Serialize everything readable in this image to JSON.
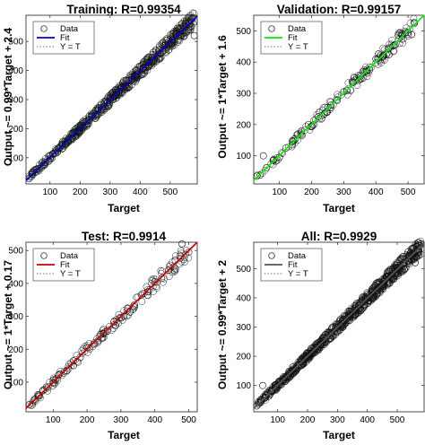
{
  "chart_data": [
    {
      "type": "scatter",
      "title": "Training: R=0.99354",
      "xlabel": "Target",
      "ylabel": "Output ~= 0.99*Target + 2.4",
      "xlim": [
        20,
        590
      ],
      "ylim": [
        10,
        590
      ],
      "xticks": [
        100,
        200,
        300,
        400,
        500
      ],
      "yticks": [
        100,
        200,
        300,
        400,
        500
      ],
      "fit_color": "#0000cc",
      "fit": {
        "slope": 0.99,
        "intercept": 2.4
      },
      "legend": [
        "Data",
        "Fit",
        "Y = T"
      ],
      "legend_position": "top-left",
      "grid": false,
      "series": [
        {
          "x": [
            30,
            40,
            55,
            60,
            80,
            100,
            110,
            125,
            140,
            150,
            160,
            170,
            180,
            190,
            200,
            210,
            220,
            230,
            240,
            250,
            260,
            270,
            280,
            290,
            300,
            310,
            320,
            330,
            340,
            350,
            360,
            370,
            380,
            390,
            400,
            410,
            420,
            430,
            440,
            460,
            480,
            500,
            520,
            540,
            560,
            580
          ],
          "y": [
            28,
            42,
            52,
            63,
            78,
            98,
            115,
            122,
            143,
            148,
            165,
            168,
            185,
            187,
            205,
            208,
            225,
            228,
            245,
            248,
            265,
            268,
            285,
            288,
            305,
            308,
            325,
            328,
            345,
            348,
            365,
            368,
            385,
            388,
            405,
            408,
            425,
            428,
            445,
            455,
            485,
            495,
            525,
            535,
            565,
            520
          ]
        }
      ]
    },
    {
      "type": "scatter",
      "title": "Validation: R=0.99157",
      "xlabel": "Target",
      "ylabel": "Output ~= 1*Target + 1.6",
      "xlim": [
        20,
        550
      ],
      "ylim": [
        10,
        550
      ],
      "xticks": [
        100,
        200,
        300,
        400,
        500
      ],
      "yticks": [
        100,
        200,
        300,
        400,
        500
      ],
      "fit_color": "#00ee00",
      "fit": {
        "slope": 1.0,
        "intercept": 1.6
      },
      "legend": [
        "Data",
        "Fit",
        "Y = T"
      ],
      "legend_position": "top-left",
      "grid": false,
      "series": [
        {
          "x": [
            30,
            40,
            50,
            60,
            80,
            100,
            120,
            140,
            150,
            170,
            190,
            200,
            220,
            240,
            250,
            260,
            280,
            300,
            310,
            330,
            350,
            360,
            380,
            400,
            420,
            440,
            460,
            480,
            500,
            520
          ],
          "y": [
            35,
            38,
            100,
            62,
            85,
            95,
            125,
            135,
            155,
            165,
            200,
            195,
            225,
            235,
            255,
            262,
            278,
            305,
            308,
            335,
            345,
            370,
            375,
            410,
            415,
            445,
            455,
            490,
            495,
            525
          ]
        }
      ]
    },
    {
      "type": "scatter",
      "title": "Test: R=0.9914",
      "xlabel": "Target",
      "ylabel": "Output ~= 1*Target + 0.17",
      "xlim": [
        20,
        525
      ],
      "ylim": [
        10,
        525
      ],
      "xticks": [
        100,
        200,
        300,
        400,
        500
      ],
      "yticks": [
        100,
        200,
        300,
        400,
        500
      ],
      "fit_color": "#cc0000",
      "fit": {
        "slope": 1.0,
        "intercept": 0.17
      },
      "legend": [
        "Data",
        "Fit",
        "Y = T"
      ],
      "legend_position": "top-left",
      "grid": false,
      "series": [
        {
          "x": [
            30,
            45,
            60,
            80,
            100,
            120,
            140,
            160,
            180,
            200,
            220,
            240,
            260,
            280,
            300,
            320,
            340,
            360,
            380,
            400,
            420,
            440,
            460,
            480,
            500
          ],
          "y": [
            32,
            48,
            58,
            85,
            98,
            125,
            135,
            165,
            175,
            205,
            215,
            245,
            255,
            285,
            295,
            325,
            335,
            365,
            375,
            405,
            415,
            440,
            470,
            520,
            495
          ]
        }
      ]
    },
    {
      "type": "scatter",
      "title": "All: R=0.9929",
      "xlabel": "Target",
      "ylabel": "Output ~= 0.99*Target + 2",
      "xlim": [
        20,
        590
      ],
      "ylim": [
        10,
        590
      ],
      "xticks": [
        100,
        200,
        300,
        400,
        500
      ],
      "yticks": [
        100,
        200,
        300,
        400,
        500
      ],
      "fit_color": "#555555",
      "fit": {
        "slope": 0.99,
        "intercept": 2.0
      },
      "legend": [
        "Data",
        "Fit",
        "Y = T"
      ],
      "legend_position": "top-left",
      "grid": false,
      "series": [
        {
          "x": [
            30,
            40,
            50,
            60,
            80,
            100,
            110,
            130,
            150,
            160,
            180,
            200,
            210,
            230,
            250,
            260,
            280,
            300,
            310,
            330,
            350,
            360,
            380,
            400,
            420,
            440,
            460,
            480,
            500,
            520,
            540,
            560,
            580
          ],
          "y": [
            30,
            42,
            100,
            60,
            82,
            98,
            115,
            128,
            152,
            158,
            182,
            198,
            212,
            228,
            252,
            258,
            282,
            298,
            312,
            328,
            352,
            358,
            382,
            398,
            422,
            438,
            462,
            478,
            502,
            520,
            535,
            520,
            585
          ]
        }
      ]
    }
  ]
}
